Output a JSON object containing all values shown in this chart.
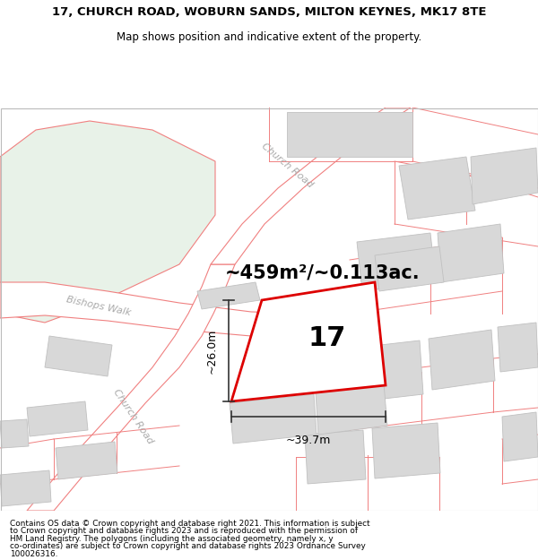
{
  "title_line1": "17, CHURCH ROAD, WOBURN SANDS, MILTON KEYNES, MK17 8TE",
  "title_line2": "Map shows position and indicative extent of the property.",
  "footer_lines": [
    "Contains OS data © Crown copyright and database right 2021. This information is subject",
    "to Crown copyright and database rights 2023 and is reproduced with the permission of",
    "HM Land Registry. The polygons (including the associated geometry, namely x, y",
    "co-ordinates) are subject to Crown copyright and database rights 2023 Ordnance Survey",
    "100026316."
  ],
  "area_text": "~459m²/~0.113ac.",
  "number_text": "17",
  "dim_width": "~39.7m",
  "dim_height": "~26.0m",
  "road_line_color": "#f08080",
  "road_fill_color": "#f8e8e8",
  "highlight_color": "#dd0000",
  "building_fill": "#d8d8d8",
  "building_edge": "#c0c0c0",
  "green_fill": "#e8f2e8",
  "green_edge": "#f08080",
  "map_bg": "#f8f8f8",
  "plot_fill": "#ffffff",
  "dim_line_color": "#333333",
  "road_label_color": "#aaaaaa",
  "title_fontsize": 9.5,
  "subtitle_fontsize": 8.5,
  "area_fontsize": 15,
  "number_fontsize": 22,
  "dim_fontsize": 9,
  "road_label_fontsize": 8,
  "footer_fontsize": 6.4
}
